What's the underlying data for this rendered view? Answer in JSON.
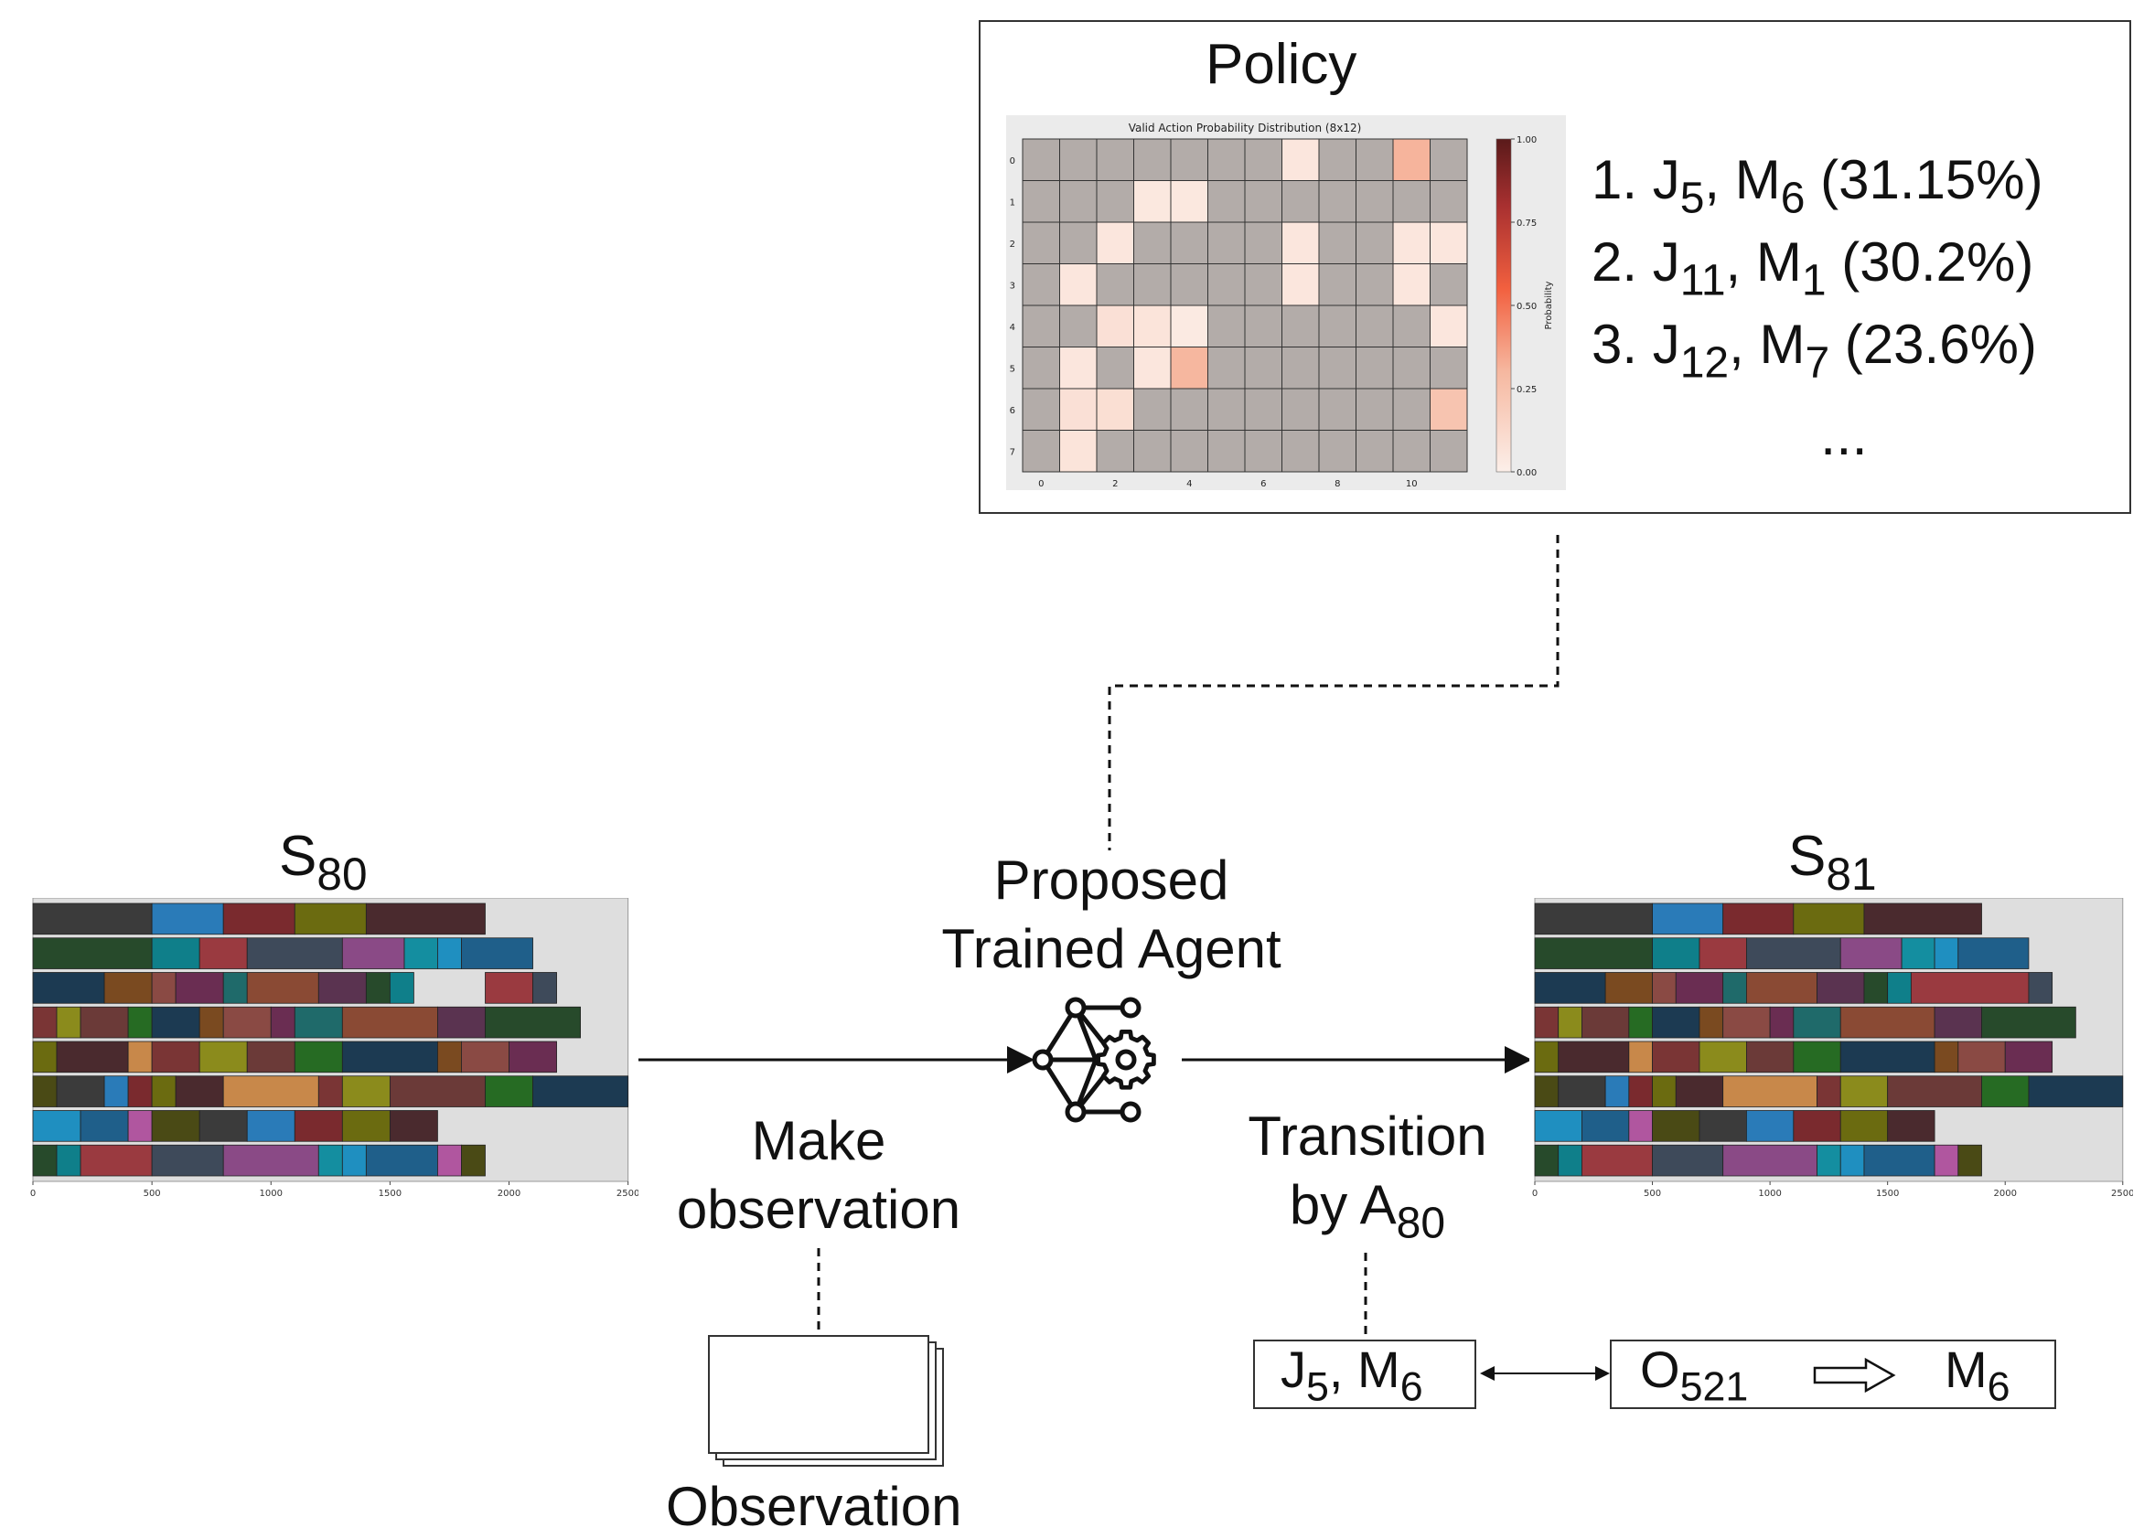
{
  "policy": {
    "title": "Policy",
    "heatmap_title": "Valid Action Probability Distribution (8x12)",
    "colorbar_label": "Probability",
    "colorbar_ticks": [
      "1.00",
      "0.75",
      "0.50",
      "0.25",
      "0.00"
    ],
    "row_ticks": [
      "0",
      "1",
      "2",
      "3",
      "4",
      "5",
      "6",
      "7"
    ],
    "col_ticks": [
      "0",
      "2",
      "4",
      "6",
      "8",
      "10"
    ],
    "actions": [
      {
        "rank": "1. ",
        "job": "J",
        "job_sub": "5",
        "machine": "M",
        "machine_sub": "6",
        "prob": "(31.15%)"
      },
      {
        "rank": "2. ",
        "job": "J",
        "job_sub": "11",
        "machine": "M",
        "machine_sub": "1",
        "prob": "(30.2%)"
      },
      {
        "rank": "3. ",
        "job": "J",
        "job_sub": "12",
        "machine": "M",
        "machine_sub": "7",
        "prob": "(23.6%)"
      }
    ],
    "ellipsis": "..."
  },
  "chart_data": [
    {
      "type": "heatmap",
      "title": "Valid Action Probability Distribution (8x12)",
      "rows": 8,
      "cols": 12,
      "colorbar_label": "Probability",
      "value_range": [
        0,
        1
      ],
      "values": [
        [
          null,
          null,
          null,
          null,
          null,
          null,
          null,
          0.05,
          null,
          null,
          0.3115,
          null
        ],
        [
          null,
          null,
          null,
          0.04,
          0.04,
          null,
          null,
          null,
          null,
          null,
          null,
          null
        ],
        [
          null,
          null,
          0.05,
          null,
          null,
          null,
          null,
          0.05,
          null,
          null,
          0.05,
          0.05
        ],
        [
          null,
          0.05,
          null,
          null,
          null,
          null,
          null,
          0.05,
          null,
          null,
          0.05,
          null
        ],
        [
          null,
          null,
          0.08,
          0.06,
          0.03,
          null,
          null,
          null,
          null,
          null,
          null,
          0.05
        ],
        [
          null,
          0.05,
          null,
          0.05,
          0.302,
          null,
          null,
          null,
          null,
          null,
          null,
          null
        ],
        [
          null,
          0.08,
          0.09,
          null,
          null,
          null,
          null,
          null,
          null,
          null,
          null,
          0.236
        ],
        [
          null,
          0.06,
          null,
          null,
          null,
          null,
          null,
          null,
          null,
          null,
          null,
          null
        ]
      ]
    },
    {
      "type": "gantt",
      "name": "S80 schedule",
      "x_ticks": [
        "0",
        "500",
        "1000",
        "1500",
        "2000",
        "2500"
      ],
      "xlim": [
        0,
        2500
      ]
    },
    {
      "type": "gantt",
      "name": "S81 schedule",
      "x_ticks": [
        "0",
        "500",
        "1000",
        "1500",
        "2000",
        "2500"
      ],
      "xlim": [
        0,
        2500
      ]
    }
  ],
  "state_80": {
    "label": "S",
    "sub": "80"
  },
  "state_81": {
    "label": "S",
    "sub": "81"
  },
  "agent": {
    "line1": "Proposed",
    "line2": "Trained Agent"
  },
  "observe": {
    "line1": "Make",
    "line2": "observation"
  },
  "observation_label": "Observation",
  "transition": {
    "line1": "Transition",
    "line2_prefix": "by A",
    "line2_sub": "80"
  },
  "action_box": {
    "job": "J",
    "job_sub": "5",
    "sep": ", ",
    "machine": "M",
    "machine_sub": "6"
  },
  "assign_box": {
    "op": "O",
    "op_sub": "521",
    "machine": "M",
    "machine_sub": "6"
  },
  "colors": {
    "cell_invalid": "#b3aca9",
    "grid_line": "#333333",
    "panel_bg": "#ebebeb",
    "gantt_bg": "#dedede"
  },
  "gantt_palette": [
    "#3b3b3b",
    "#4a2a2e",
    "#6b3a38",
    "#8a4a44",
    "#5a3350",
    "#3e4a5a",
    "#1f5f8a",
    "#2a7bb8",
    "#c8884a",
    "#266b23",
    "#6a2d52",
    "#274a2b",
    "#8a4a86",
    "#b0569f",
    "#7a2a2e",
    "#7a3535",
    "#1c3a52",
    "#1f6a6a",
    "#0f7f8a",
    "#148ea0",
    "#4a4a15",
    "#6b6b10",
    "#8b8b1c",
    "#7a4a20",
    "#8a4a34",
    "#9a3a40",
    "#1f8fc0"
  ]
}
